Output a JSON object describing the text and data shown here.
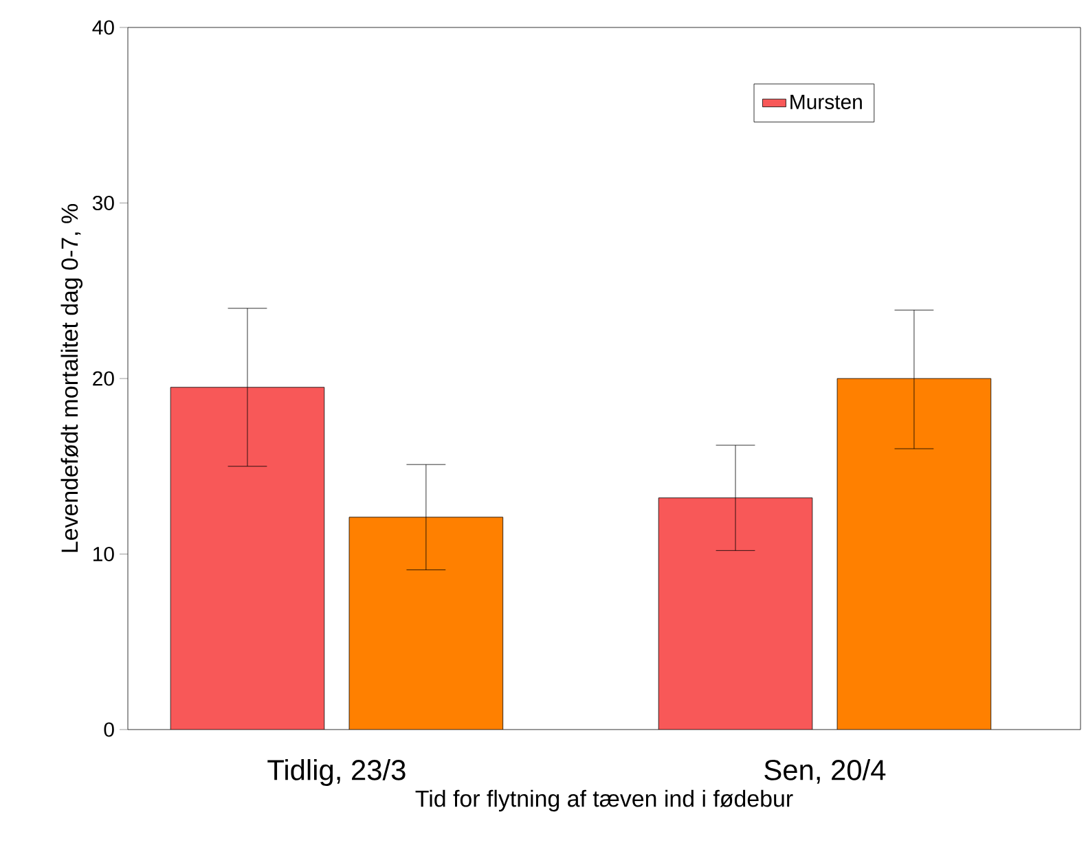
{
  "chart_data": {
    "type": "bar",
    "xlabel": "Tid for flytning af tæven ind i fødebur",
    "ylabel": "Levendefødt mortalitet dag 0-7, %",
    "categories": [
      "Tidlig, 23/3",
      "Sen, 20/4"
    ],
    "series": [
      {
        "name": "Mursten",
        "color": "#f85858",
        "values": [
          19.5,
          13.2
        ],
        "errors": [
          [
            15.0,
            24.0
          ],
          [
            10.2,
            16.2
          ]
        ]
      },
      {
        "color": "#ff8000",
        "values": [
          12.1,
          20.0
        ],
        "errors": [
          [
            9.1,
            15.1
          ],
          [
            16.0,
            23.9
          ]
        ]
      }
    ],
    "ylim": [
      0,
      40
    ],
    "yticks": [
      0,
      10,
      20,
      30,
      40
    ],
    "legend": "top right",
    "grid": false
  }
}
